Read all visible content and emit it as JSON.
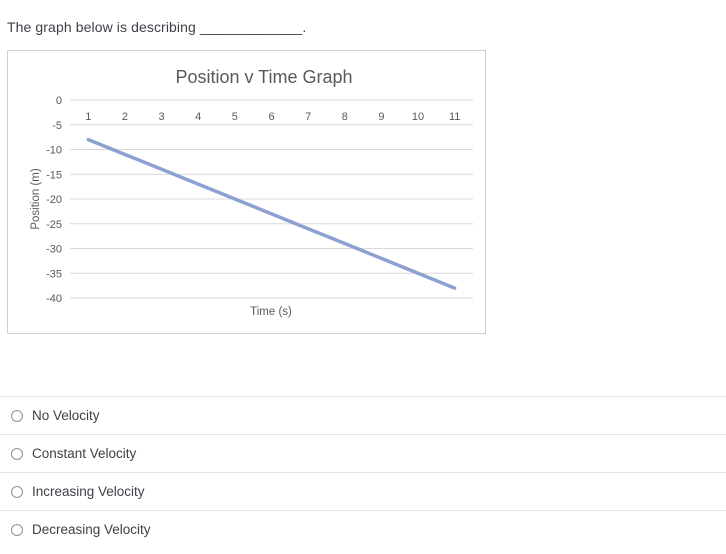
{
  "question": {
    "text": "The graph below is describing _____________."
  },
  "chart_data": {
    "type": "line",
    "title": "Position v Time Graph",
    "xlabel": "Time (s)",
    "ylabel": "Position (m)",
    "x": [
      1,
      2,
      3,
      4,
      5,
      6,
      7,
      8,
      9,
      10,
      11
    ],
    "series": [
      {
        "name": "Position",
        "values": [
          -8,
          -11,
          -14,
          -17,
          -20,
          -23,
          -26,
          -29,
          -32,
          -35,
          -38
        ]
      }
    ],
    "ylim": [
      -40,
      0
    ],
    "yticks": [
      0,
      -5,
      -10,
      -15,
      -20,
      -25,
      -30,
      -35,
      -40
    ],
    "grid": true,
    "legend_position": "none",
    "line_color": "#8ca0d2",
    "grid_color": "#d9d9d9",
    "axis_text_color": "#595959",
    "title_color": "#595959"
  },
  "options": [
    {
      "label": "No Velocity",
      "selected": false
    },
    {
      "label": "Constant Velocity",
      "selected": false
    },
    {
      "label": "Increasing Velocity",
      "selected": false
    },
    {
      "label": "Decreasing Velocity",
      "selected": false
    }
  ]
}
